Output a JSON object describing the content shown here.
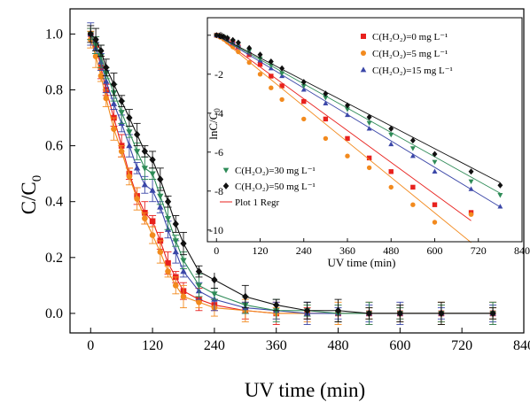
{
  "chart_data": [
    {
      "type": "scatter",
      "xlabel": "UV time (min)",
      "ylabel_main": "C/C",
      "ylabel_sub": "0",
      "xlim": [
        -40,
        840
      ],
      "ylim": [
        -0.07,
        1.09
      ],
      "xticks": [
        "0",
        "120",
        "240",
        "360",
        "480",
        "600",
        "720",
        "840"
      ],
      "yticks": [
        "0.0",
        "0.2",
        "0.4",
        "0.6",
        "0.8",
        "1.0"
      ],
      "series": [
        {
          "color": "#e8211d",
          "marker": "square",
          "fit": "#e8211d",
          "x": [
            0,
            10,
            20,
            30,
            45,
            60,
            75,
            90,
            105,
            120,
            135,
            150,
            165,
            180,
            210,
            240,
            300,
            360,
            420,
            480,
            540,
            600,
            680,
            780
          ],
          "y": [
            1.0,
            0.96,
            0.88,
            0.8,
            0.7,
            0.6,
            0.5,
            0.42,
            0.36,
            0.33,
            0.26,
            0.18,
            0.13,
            0.08,
            0.05,
            0.03,
            0.01,
            0.0,
            0.0,
            0.0,
            0.0,
            0.0,
            0.0,
            0.0
          ]
        },
        {
          "color": "#f28a1e",
          "marker": "circle",
          "fit": "#f28a1e",
          "x": [
            0,
            10,
            20,
            30,
            45,
            60,
            75,
            90,
            105,
            120,
            135,
            150,
            165,
            180,
            210,
            240,
            300,
            360,
            420,
            480,
            540,
            600,
            680,
            780
          ],
          "y": [
            0.98,
            0.92,
            0.85,
            0.77,
            0.66,
            0.58,
            0.49,
            0.41,
            0.34,
            0.28,
            0.22,
            0.15,
            0.1,
            0.06,
            0.04,
            0.02,
            0.01,
            0.0,
            0.0,
            0.0,
            0.0,
            0.0,
            0.0,
            0.0
          ]
        },
        {
          "color": "#3b47a8",
          "marker": "triangle",
          "fit": "#3b47a8",
          "x": [
            0,
            10,
            20,
            30,
            45,
            60,
            75,
            90,
            105,
            120,
            135,
            150,
            165,
            180,
            210,
            240,
            300,
            360,
            420,
            480,
            540,
            600,
            680,
            780
          ],
          "y": [
            1.0,
            0.95,
            0.9,
            0.83,
            0.75,
            0.68,
            0.6,
            0.52,
            0.46,
            0.44,
            0.38,
            0.3,
            0.22,
            0.15,
            0.08,
            0.05,
            0.02,
            0.01,
            0.0,
            0.0,
            0.0,
            0.0,
            0.0,
            0.0
          ]
        },
        {
          "color": "#2e8b57",
          "marker": "triangle-down",
          "fit": "#2e8b57",
          "x": [
            0,
            10,
            20,
            30,
            45,
            60,
            75,
            90,
            105,
            120,
            135,
            150,
            165,
            180,
            210,
            240,
            300,
            360,
            420,
            480,
            540,
            600,
            680,
            780
          ],
          "y": [
            1.0,
            0.96,
            0.92,
            0.86,
            0.79,
            0.72,
            0.65,
            0.58,
            0.52,
            0.5,
            0.42,
            0.34,
            0.26,
            0.19,
            0.1,
            0.07,
            0.03,
            0.01,
            0.01,
            0.0,
            0.0,
            0.0,
            0.0,
            0.0
          ]
        },
        {
          "color": "#111111",
          "marker": "diamond",
          "fit": "#111111",
          "x": [
            0,
            10,
            20,
            30,
            45,
            60,
            75,
            90,
            105,
            120,
            135,
            150,
            165,
            180,
            210,
            240,
            300,
            360,
            420,
            480,
            540,
            600,
            680,
            780
          ],
          "y": [
            1.0,
            0.98,
            0.94,
            0.88,
            0.82,
            0.76,
            0.7,
            0.64,
            0.58,
            0.55,
            0.48,
            0.4,
            0.32,
            0.25,
            0.15,
            0.12,
            0.06,
            0.03,
            0.01,
            0.01,
            0.0,
            0.0,
            0.0,
            0.0
          ]
        }
      ]
    },
    {
      "type": "scatter",
      "xlabel": "UV time (min)",
      "ylabel_main": "lnC/C",
      "ylabel_sub": "0",
      "xlim": [
        -25,
        840
      ],
      "ylim": [
        -10.6,
        0.9
      ],
      "xticks": [
        "0",
        "120",
        "240",
        "360",
        "480",
        "600",
        "720",
        "840"
      ],
      "yticks": [
        "0",
        "-2",
        "-4",
        "-6",
        "-8",
        "-10"
      ],
      "legend_position": "top-right and bottom-left",
      "series": [
        {
          "name": "C(H₂O₂)=0 mg L⁻¹",
          "color": "#e8211d",
          "marker": "square",
          "slope": -0.0136,
          "x": [
            0,
            10,
            20,
            30,
            45,
            60,
            90,
            120,
            150,
            180,
            240,
            300,
            360,
            420,
            480,
            540,
            600,
            700
          ],
          "y": [
            0.0,
            -0.05,
            -0.12,
            -0.22,
            -0.4,
            -0.6,
            -1.0,
            -1.5,
            -2.1,
            -2.6,
            -3.4,
            -4.3,
            -5.3,
            -6.3,
            -7.0,
            -7.8,
            -8.7,
            -9.1
          ]
        },
        {
          "name": "C(H₂O₂)=5 mg L⁻¹",
          "color": "#f28a1e",
          "marker": "circle",
          "slope": -0.0152,
          "x": [
            0,
            10,
            20,
            30,
            45,
            60,
            90,
            120,
            150,
            180,
            240,
            300,
            360,
            420,
            480,
            540,
            600,
            700
          ],
          "y": [
            -0.02,
            -0.1,
            -0.2,
            -0.35,
            -0.6,
            -0.85,
            -1.4,
            -2.0,
            -2.7,
            -3.3,
            -4.3,
            -5.3,
            -6.2,
            -6.8,
            -7.8,
            -8.7,
            -9.6,
            -9.2
          ]
        },
        {
          "name": "C(H₂O₂)=15 mg L⁻¹",
          "color": "#3b47a8",
          "marker": "triangle",
          "slope": -0.0113,
          "x": [
            0,
            10,
            20,
            30,
            45,
            60,
            90,
            120,
            150,
            180,
            240,
            300,
            360,
            420,
            480,
            540,
            600,
            700,
            780
          ],
          "y": [
            0.0,
            -0.05,
            -0.1,
            -0.2,
            -0.35,
            -0.5,
            -0.85,
            -1.3,
            -1.7,
            -2.1,
            -2.8,
            -3.5,
            -4.1,
            -4.8,
            -5.6,
            -6.2,
            -7.0,
            -7.9,
            -8.8
          ]
        },
        {
          "name": "C(H₂O₂)=30 mg L⁻¹",
          "color": "#2e8b57",
          "marker": "triangle-down",
          "slope": -0.0104,
          "x": [
            0,
            10,
            20,
            30,
            45,
            60,
            90,
            120,
            150,
            180,
            240,
            300,
            360,
            420,
            480,
            540,
            600,
            700,
            780
          ],
          "y": [
            0.0,
            -0.04,
            -0.09,
            -0.17,
            -0.3,
            -0.45,
            -0.8,
            -1.2,
            -1.55,
            -1.95,
            -2.6,
            -3.2,
            -3.8,
            -4.5,
            -5.1,
            -5.8,
            -6.5,
            -7.5,
            -8.2
          ]
        },
        {
          "name": "C(H₂O₂)=50 mg L⁻¹",
          "color": "#111111",
          "marker": "diamond",
          "slope": -0.0097,
          "x": [
            0,
            10,
            20,
            30,
            45,
            60,
            90,
            120,
            150,
            180,
            240,
            300,
            360,
            420,
            480,
            540,
            600,
            700,
            780
          ],
          "y": [
            0.0,
            -0.03,
            -0.07,
            -0.14,
            -0.25,
            -0.38,
            -0.66,
            -1.0,
            -1.35,
            -1.7,
            -2.4,
            -3.0,
            -3.6,
            -4.2,
            -4.8,
            -5.4,
            -6.1,
            -7.0,
            -7.7
          ]
        }
      ],
      "fit_legend": "Plot 1 Regr"
    }
  ]
}
